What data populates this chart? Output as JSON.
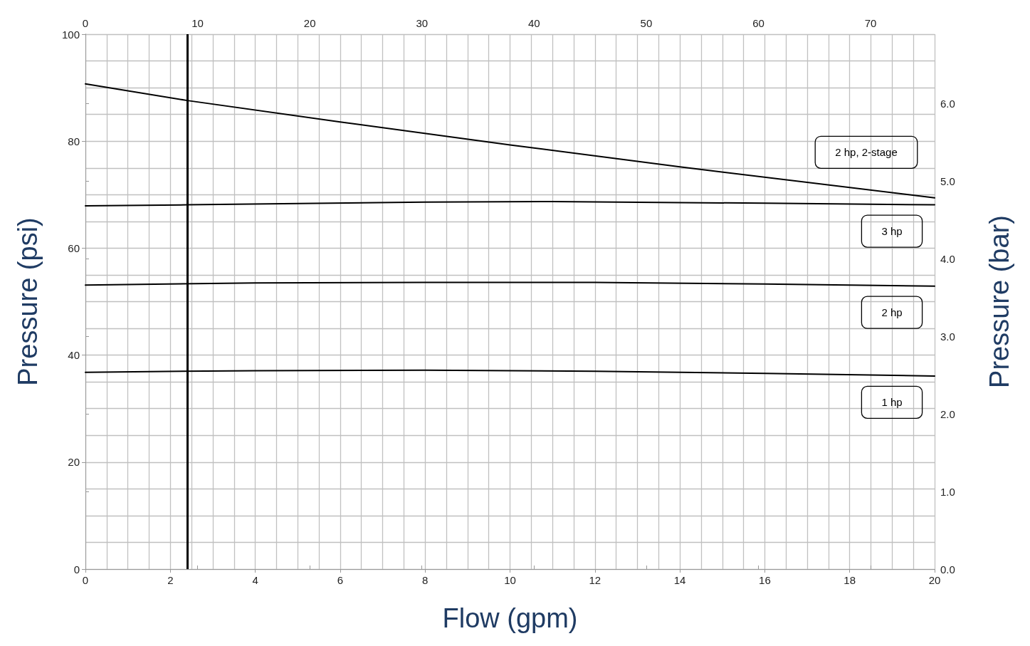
{
  "chart_data": {
    "type": "line",
    "xlabel": "Flow (gpm)",
    "ylabel": "Pressure (psi)",
    "y2label": "Pressure (bar)",
    "xlim": [
      0,
      20
    ],
    "xticks": [
      0,
      2,
      4,
      6,
      8,
      10,
      12,
      14,
      16,
      18,
      20
    ],
    "ylim": [
      0,
      100
    ],
    "yticks": [
      0,
      20,
      40,
      60,
      80,
      100
    ],
    "y2lim": [
      0,
      6.89476
    ],
    "y2ticks": [
      {
        "value": 0,
        "label": "0.0"
      },
      {
        "value": 1,
        "label": "1.0"
      },
      {
        "value": 2,
        "label": "2.0"
      },
      {
        "value": 3,
        "label": "3.0"
      },
      {
        "value": 4,
        "label": "4.0"
      },
      {
        "value": 5,
        "label": "5.0"
      },
      {
        "value": 6,
        "label": "6.0"
      }
    ],
    "x2lim": [
      0,
      75.708
    ],
    "x2ticks": [
      0,
      10,
      20,
      30,
      40,
      50,
      60,
      70
    ],
    "grid": true,
    "legend": false,
    "marker": "none",
    "line_style": "solid",
    "series": [
      {
        "name": "2 hp, 2-stage",
        "color": "#000000",
        "x": [
          0,
          2.4,
          6,
          10,
          14,
          20
        ],
        "values": [
          90.7,
          87.6,
          83.6,
          79.3,
          75.2,
          69.4
        ]
      },
      {
        "name": "3 hp",
        "color": "#000000",
        "x": [
          0,
          2.4,
          8,
          11,
          16,
          20
        ],
        "values": [
          67.9,
          68.1,
          68.6,
          68.7,
          68.4,
          68.1
        ]
      },
      {
        "name": "2 hp",
        "color": "#000000",
        "x": [
          0,
          4,
          8,
          12,
          16,
          20
        ],
        "values": [
          53.1,
          53.5,
          53.6,
          53.6,
          53.3,
          52.9
        ]
      },
      {
        "name": "1 hp",
        "color": "#000000",
        "x": [
          0,
          4,
          8,
          12,
          16,
          20
        ],
        "values": [
          36.8,
          37.1,
          37.2,
          37.0,
          36.6,
          36.1
        ]
      }
    ],
    "ref_lines": [
      {
        "axis": "x",
        "value": 2.4,
        "color": "#000000"
      }
    ]
  }
}
